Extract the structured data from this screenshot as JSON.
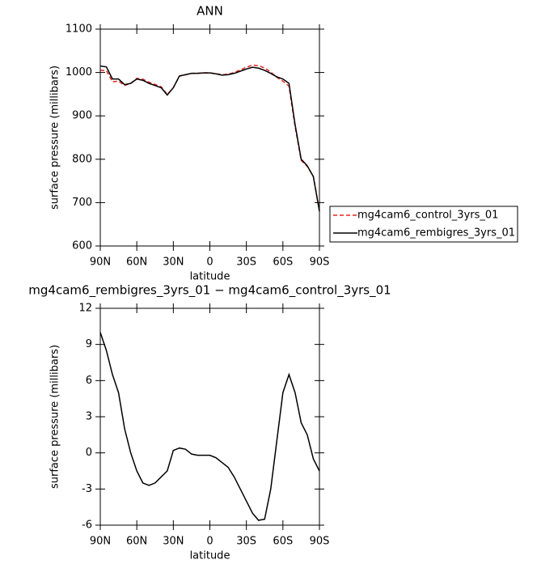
{
  "chart_data": [
    {
      "type": "line",
      "title": "ANN",
      "xlabel": "latitude",
      "ylabel": "surface pressure (millibars)",
      "x": [
        90,
        85,
        80,
        75,
        70,
        65,
        60,
        55,
        50,
        45,
        40,
        35,
        30,
        25,
        20,
        15,
        10,
        5,
        0,
        -5,
        -10,
        -15,
        -20,
        -25,
        -30,
        -35,
        -40,
        -45,
        -50,
        -55,
        -60,
        -65,
        -70,
        -75,
        -80,
        -85,
        -90
      ],
      "xlim": [
        90,
        -90
      ],
      "xticks": [
        {
          "value": 90,
          "label": "90N"
        },
        {
          "value": 60,
          "label": "60N"
        },
        {
          "value": 30,
          "label": "30N"
        },
        0,
        {
          "value": -30,
          "label": "30S"
        },
        {
          "value": -60,
          "label": "60S"
        },
        {
          "value": -90,
          "label": "90S"
        }
      ],
      "ylim": [
        600,
        1100
      ],
      "yticks": [
        600,
        700,
        800,
        900,
        1000,
        1100
      ],
      "legend": "outside right",
      "series": [
        {
          "name": "mg4cam6_control_3yrs_01",
          "color": "#e8231f",
          "dashed": true,
          "values": [
            1005,
            1004.5,
            978.5,
            980,
            970,
            975,
            986.5,
            984.5,
            977.7,
            972.5,
            967,
            949.5,
            964.8,
            991.6,
            994.7,
            998.1,
            998.2,
            999.2,
            999.2,
            997.4,
            994.8,
            996.2,
            1000,
            1006,
            1012,
            1017,
            1015.6,
            1010.5,
            1001,
            989,
            980,
            968.5,
            875,
            797.5,
            783.5,
            760.5,
            681.5
          ]
        },
        {
          "name": "mg4cam6_rembigres_3yrs_01",
          "color": "#000000",
          "dashed": false,
          "values": [
            1015,
            1013,
            985,
            985,
            972,
            975,
            985,
            982,
            975,
            970,
            965,
            948,
            965,
            992,
            995,
            998,
            998,
            999,
            999,
            997,
            994,
            995,
            998,
            1003,
            1008,
            1012,
            1010,
            1005,
            998,
            990,
            985,
            975,
            880,
            800,
            785,
            760,
            680
          ]
        }
      ]
    },
    {
      "type": "line",
      "title": "mg4cam6_rembigres_3yrs_01 − mg4cam6_control_3yrs_01",
      "xlabel": "latitude",
      "ylabel": "surface pressure (millibars)",
      "x": [
        90,
        85,
        80,
        75,
        70,
        65,
        60,
        55,
        50,
        45,
        40,
        35,
        30,
        25,
        20,
        15,
        10,
        5,
        0,
        -5,
        -10,
        -15,
        -20,
        -25,
        -30,
        -35,
        -40,
        -45,
        -50,
        -55,
        -60,
        -65,
        -70,
        -75,
        -80,
        -85,
        -90
      ],
      "xlim": [
        90,
        -90
      ],
      "xticks": [
        {
          "value": 90,
          "label": "90N"
        },
        {
          "value": 60,
          "label": "60N"
        },
        {
          "value": 30,
          "label": "30N"
        },
        0,
        {
          "value": -30,
          "label": "30S"
        },
        {
          "value": -60,
          "label": "60S"
        },
        {
          "value": -90,
          "label": "90S"
        }
      ],
      "ylim": [
        -6,
        12
      ],
      "yticks": [
        -6,
        -3,
        0,
        3,
        6,
        9,
        12
      ],
      "series": [
        {
          "color": "#000000",
          "dashed": false,
          "values": [
            10,
            8.5,
            6.5,
            5,
            2,
            0,
            -1.5,
            -2.5,
            -2.7,
            -2.5,
            -2,
            -1.5,
            0.2,
            0.4,
            0.3,
            -0.1,
            -0.2,
            -0.2,
            -0.2,
            -0.4,
            -0.8,
            -1.2,
            -2,
            -3,
            -4,
            -5,
            -5.6,
            -5.5,
            -3,
            1,
            5,
            6.5,
            5,
            2.5,
            1.5,
            -0.5,
            -1.5
          ]
        }
      ]
    }
  ]
}
